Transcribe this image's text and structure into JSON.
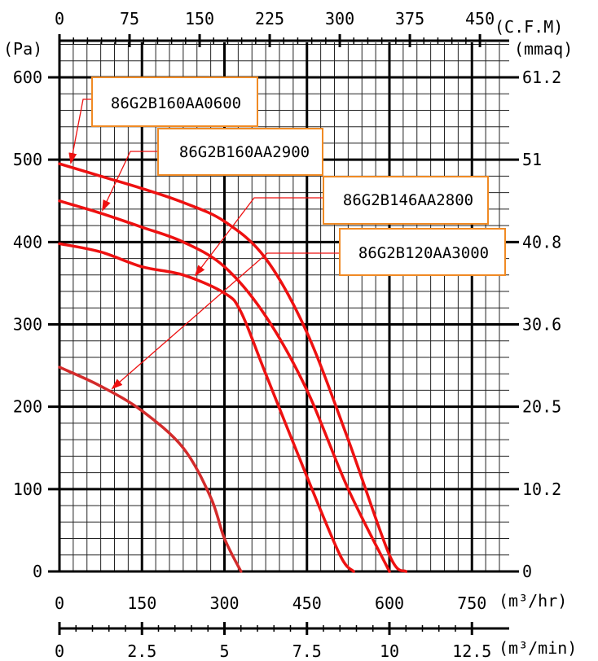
{
  "chart_data": {
    "type": "line",
    "title": "",
    "x_axes": {
      "cfm": {
        "label": "(C.F.M)",
        "ticks": [
          "0",
          "75",
          "150",
          "225",
          "300",
          "375",
          "450"
        ]
      },
      "m3hr": {
        "label": "(m³/hr)",
        "ticks": [
          "0",
          "150",
          "300",
          "450",
          "600",
          "750"
        ]
      },
      "m3min": {
        "label": "(m³/min)",
        "ticks": [
          "0",
          "2.5",
          "5",
          "7.5",
          "10",
          "12.5"
        ]
      }
    },
    "y_axes": {
      "pa": {
        "label": "(Pa)",
        "ticks": [
          "0",
          "100",
          "200",
          "300",
          "400",
          "500",
          "600"
        ]
      },
      "mmaq": {
        "label": "(mmaq)",
        "ticks": [
          "0",
          "10.2",
          "20.5",
          "30.6",
          "40.8",
          "51",
          "61.2"
        ]
      }
    },
    "xlim_m3hr": [
      0,
      750
    ],
    "ylim_pa": [
      0,
      600
    ],
    "grid": true,
    "line_color": "#ee1111",
    "series": [
      {
        "name": "86G2B160AA0600",
        "points": [
          [
            0,
            495
          ],
          [
            75,
            480
          ],
          [
            150,
            465
          ],
          [
            225,
            448
          ],
          [
            300,
            425
          ],
          [
            375,
            380
          ],
          [
            450,
            290
          ],
          [
            525,
            160
          ],
          [
            600,
            20
          ],
          [
            630,
            0
          ]
        ],
        "color": "#ee1111"
      },
      {
        "name": "86G2B160AA2900",
        "points": [
          [
            0,
            450
          ],
          [
            75,
            435
          ],
          [
            150,
            418
          ],
          [
            225,
            400
          ],
          [
            300,
            370
          ],
          [
            375,
            310
          ],
          [
            450,
            220
          ],
          [
            525,
            100
          ],
          [
            600,
            0
          ]
        ],
        "color": "#ee1111"
      },
      {
        "name": "86G2B146AA2800",
        "points": [
          [
            0,
            398
          ],
          [
            75,
            388
          ],
          [
            150,
            370
          ],
          [
            225,
            360
          ],
          [
            300,
            338
          ],
          [
            330,
            315
          ],
          [
            375,
            240
          ],
          [
            450,
            115
          ],
          [
            510,
            20
          ],
          [
            535,
            0
          ]
        ],
        "color": "#ee1111"
      },
      {
        "name": "86G2B120AA3000",
        "points": [
          [
            0,
            248
          ],
          [
            75,
            225
          ],
          [
            150,
            195
          ],
          [
            225,
            150
          ],
          [
            275,
            90
          ],
          [
            300,
            40
          ],
          [
            330,
            0
          ]
        ],
        "color": "#d32b2b"
      }
    ]
  }
}
